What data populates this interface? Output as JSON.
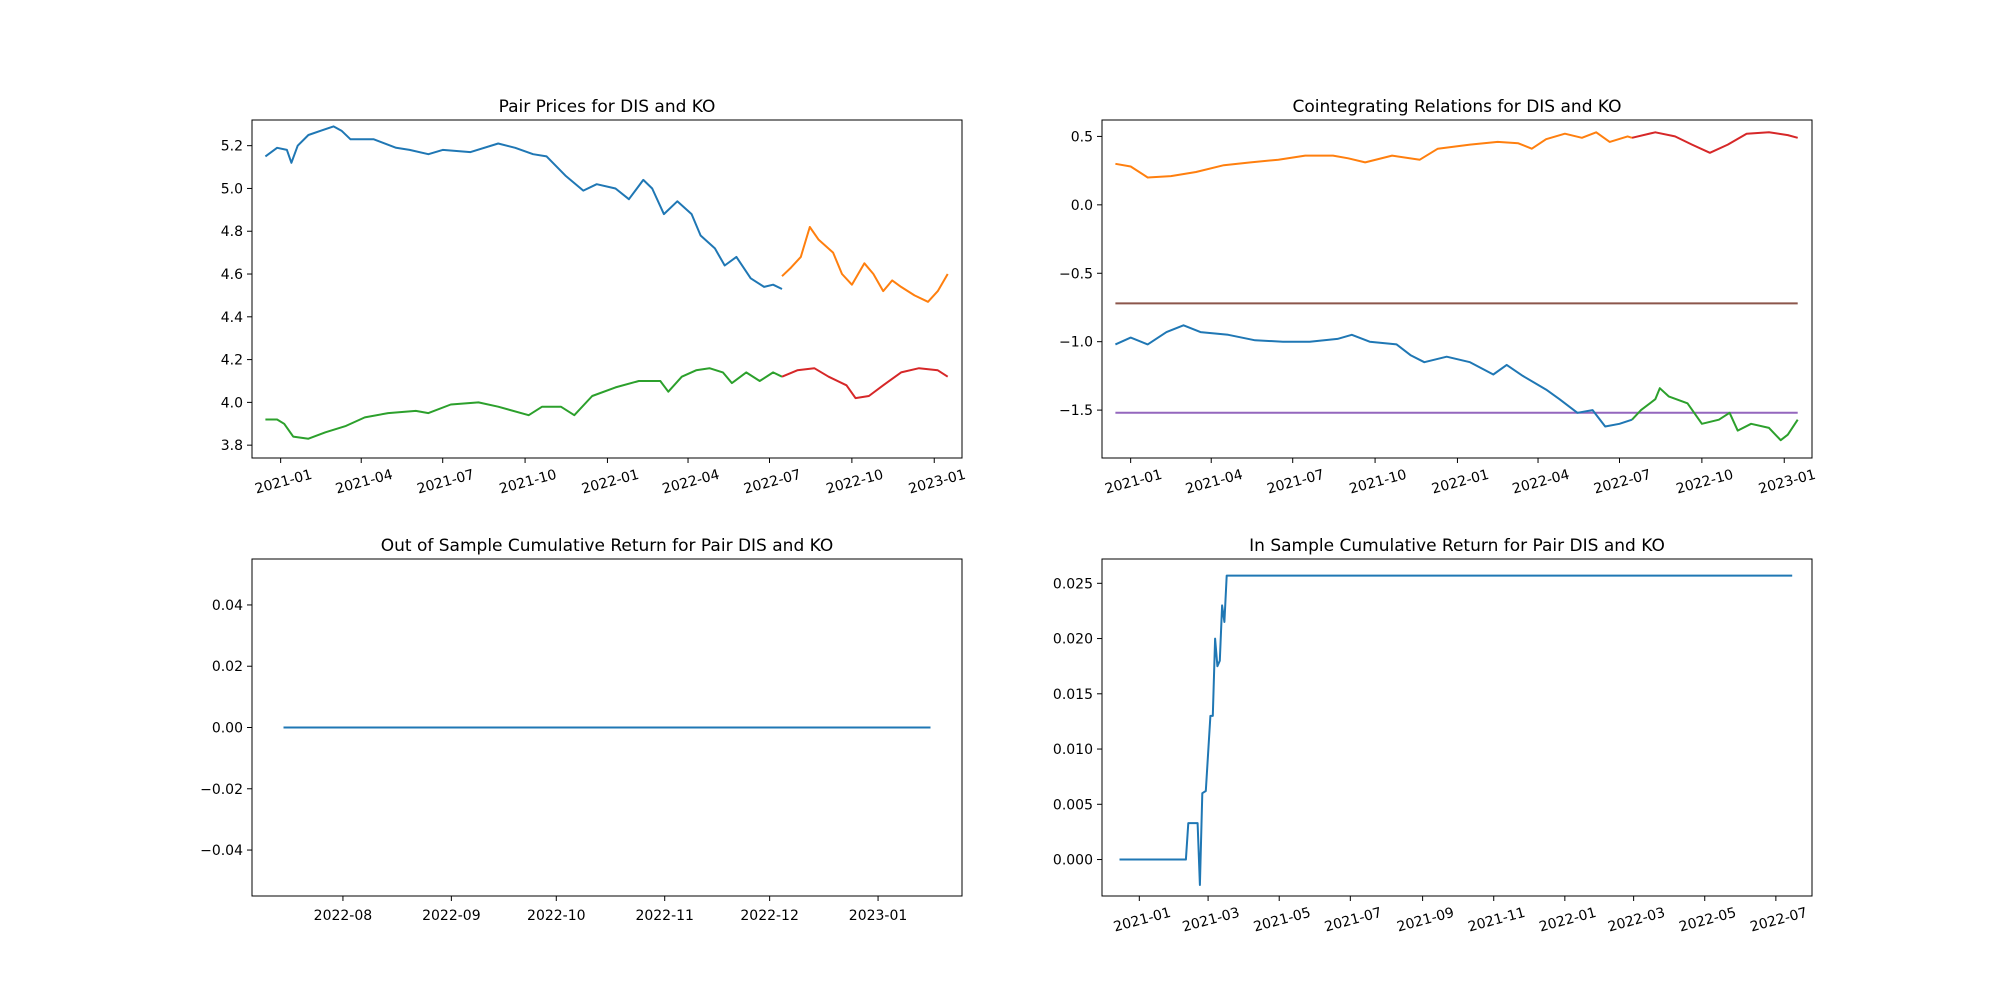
{
  "chart_data": [
    {
      "type": "line",
      "title": "Pair Prices for DIS and KO",
      "ylim": [
        3.74,
        5.32
      ],
      "yticks": [
        "3.8",
        "4.0",
        "4.2",
        "4.4",
        "4.6",
        "4.8",
        "5.0",
        "5.2"
      ],
      "xticks": [
        "2021-01",
        "2021-04",
        "2021-07",
        "2021-10",
        "2022-01",
        "2022-04",
        "2022-07",
        "2022-10",
        "2023-01"
      ],
      "series": [
        {
          "color": "#1f77b4",
          "points": [
            [
              "2020-12-15",
              5.15
            ],
            [
              "2020-12-28",
              5.19
            ],
            [
              "2021-01-08",
              5.18
            ],
            [
              "2021-01-13",
              5.12
            ],
            [
              "2021-01-20",
              5.2
            ],
            [
              "2021-02-01",
              5.25
            ],
            [
              "2021-02-15",
              5.27
            ],
            [
              "2021-03-01",
              5.29
            ],
            [
              "2021-03-10",
              5.27
            ],
            [
              "2021-03-20",
              5.23
            ],
            [
              "2021-04-15",
              5.23
            ],
            [
              "2021-05-10",
              5.19
            ],
            [
              "2021-05-25",
              5.18
            ],
            [
              "2021-06-15",
              5.16
            ],
            [
              "2021-07-01",
              5.18
            ],
            [
              "2021-08-01",
              5.17
            ],
            [
              "2021-09-01",
              5.21
            ],
            [
              "2021-09-20",
              5.19
            ],
            [
              "2021-10-10",
              5.16
            ],
            [
              "2021-10-25",
              5.15
            ],
            [
              "2021-11-15",
              5.06
            ],
            [
              "2021-12-05",
              4.99
            ],
            [
              "2021-12-20",
              5.02
            ],
            [
              "2022-01-10",
              5.0
            ],
            [
              "2022-01-25",
              4.95
            ],
            [
              "2022-02-10",
              5.04
            ],
            [
              "2022-02-20",
              5.0
            ],
            [
              "2022-03-05",
              4.88
            ],
            [
              "2022-03-20",
              4.94
            ],
            [
              "2022-04-05",
              4.88
            ],
            [
              "2022-04-15",
              4.78
            ],
            [
              "2022-05-01",
              4.72
            ],
            [
              "2022-05-12",
              4.64
            ],
            [
              "2022-05-25",
              4.68
            ],
            [
              "2022-06-10",
              4.58
            ],
            [
              "2022-06-25",
              4.54
            ],
            [
              "2022-07-05",
              4.55
            ],
            [
              "2022-07-15",
              4.53
            ]
          ]
        },
        {
          "color": "#ff7f0e",
          "points": [
            [
              "2022-07-15",
              4.59
            ],
            [
              "2022-07-25",
              4.63
            ],
            [
              "2022-08-05",
              4.68
            ],
            [
              "2022-08-15",
              4.82
            ],
            [
              "2022-08-25",
              4.76
            ],
            [
              "2022-09-10",
              4.7
            ],
            [
              "2022-09-20",
              4.6
            ],
            [
              "2022-10-01",
              4.55
            ],
            [
              "2022-10-15",
              4.65
            ],
            [
              "2022-10-25",
              4.6
            ],
            [
              "2022-11-05",
              4.52
            ],
            [
              "2022-11-15",
              4.57
            ],
            [
              "2022-11-25",
              4.54
            ],
            [
              "2022-12-10",
              4.5
            ],
            [
              "2022-12-25",
              4.47
            ],
            [
              "2023-01-05",
              4.52
            ],
            [
              "2023-01-16",
              4.6
            ]
          ]
        },
        {
          "color": "#2ca02c",
          "points": [
            [
              "2020-12-15",
              3.92
            ],
            [
              "2020-12-28",
              3.92
            ],
            [
              "2021-01-05",
              3.9
            ],
            [
              "2021-01-15",
              3.84
            ],
            [
              "2021-02-01",
              3.83
            ],
            [
              "2021-02-20",
              3.86
            ],
            [
              "2021-03-15",
              3.89
            ],
            [
              "2021-04-05",
              3.93
            ],
            [
              "2021-05-01",
              3.95
            ],
            [
              "2021-06-01",
              3.96
            ],
            [
              "2021-06-15",
              3.95
            ],
            [
              "2021-07-10",
              3.99
            ],
            [
              "2021-08-10",
              4.0
            ],
            [
              "2021-09-01",
              3.98
            ],
            [
              "2021-10-05",
              3.94
            ],
            [
              "2021-10-20",
              3.98
            ],
            [
              "2021-11-10",
              3.98
            ],
            [
              "2021-11-25",
              3.94
            ],
            [
              "2021-12-15",
              4.03
            ],
            [
              "2022-01-10",
              4.07
            ],
            [
              "2022-02-05",
              4.1
            ],
            [
              "2022-03-01",
              4.1
            ],
            [
              "2022-03-10",
              4.05
            ],
            [
              "2022-03-25",
              4.12
            ],
            [
              "2022-04-10",
              4.15
            ],
            [
              "2022-04-25",
              4.16
            ],
            [
              "2022-05-10",
              4.14
            ],
            [
              "2022-05-20",
              4.09
            ],
            [
              "2022-06-05",
              4.14
            ],
            [
              "2022-06-20",
              4.1
            ],
            [
              "2022-07-05",
              4.14
            ],
            [
              "2022-07-15",
              4.12
            ]
          ]
        },
        {
          "color": "#d62728",
          "points": [
            [
              "2022-07-15",
              4.12
            ],
            [
              "2022-08-01",
              4.15
            ],
            [
              "2022-08-20",
              4.16
            ],
            [
              "2022-09-05",
              4.12
            ],
            [
              "2022-09-25",
              4.08
            ],
            [
              "2022-10-05",
              4.02
            ],
            [
              "2022-10-20",
              4.03
            ],
            [
              "2022-11-05",
              4.08
            ],
            [
              "2022-11-25",
              4.14
            ],
            [
              "2022-12-15",
              4.16
            ],
            [
              "2023-01-05",
              4.15
            ],
            [
              "2023-01-16",
              4.12
            ]
          ]
        }
      ]
    },
    {
      "type": "line",
      "title": "Cointegrating Relations for DIS and KO",
      "ylim": [
        -1.85,
        0.62
      ],
      "yticks": [
        "−1.5",
        "−1.0",
        "−0.5",
        "0.0",
        "0.5"
      ],
      "xticks": [
        "2021-01",
        "2021-04",
        "2021-07",
        "2021-10",
        "2022-01",
        "2022-04",
        "2022-07",
        "2022-10",
        "2023-01"
      ],
      "series": [
        {
          "color": "#8c564b",
          "points": [
            [
              "2020-12-15",
              -0.72
            ],
            [
              "2023-01-16",
              -0.72
            ]
          ]
        },
        {
          "color": "#9467bd",
          "points": [
            [
              "2020-12-15",
              -1.52
            ],
            [
              "2023-01-16",
              -1.52
            ]
          ]
        },
        {
          "color": "#ff7f0e",
          "points": [
            [
              "2020-12-15",
              0.3
            ],
            [
              "2021-01-01",
              0.28
            ],
            [
              "2021-01-20",
              0.2
            ],
            [
              "2021-02-15",
              0.21
            ],
            [
              "2021-03-15",
              0.24
            ],
            [
              "2021-04-15",
              0.29
            ],
            [
              "2021-05-15",
              0.31
            ],
            [
              "2021-06-15",
              0.33
            ],
            [
              "2021-07-15",
              0.36
            ],
            [
              "2021-08-15",
              0.36
            ],
            [
              "2021-09-01",
              0.34
            ],
            [
              "2021-09-20",
              0.31
            ],
            [
              "2021-10-20",
              0.36
            ],
            [
              "2021-11-20",
              0.33
            ],
            [
              "2021-12-10",
              0.41
            ],
            [
              "2022-01-15",
              0.44
            ],
            [
              "2022-02-15",
              0.46
            ],
            [
              "2022-03-10",
              0.45
            ],
            [
              "2022-03-25",
              0.41
            ],
            [
              "2022-04-10",
              0.48
            ],
            [
              "2022-05-01",
              0.52
            ],
            [
              "2022-05-20",
              0.49
            ],
            [
              "2022-06-05",
              0.53
            ],
            [
              "2022-06-20",
              0.46
            ],
            [
              "2022-07-10",
              0.5
            ],
            [
              "2022-07-15",
              0.49
            ]
          ]
        },
        {
          "color": "#d62728",
          "points": [
            [
              "2022-07-15",
              0.49
            ],
            [
              "2022-08-10",
              0.53
            ],
            [
              "2022-09-01",
              0.5
            ],
            [
              "2022-09-20",
              0.44
            ],
            [
              "2022-10-10",
              0.38
            ],
            [
              "2022-10-30",
              0.44
            ],
            [
              "2022-11-20",
              0.52
            ],
            [
              "2022-12-15",
              0.53
            ],
            [
              "2023-01-05",
              0.51
            ],
            [
              "2023-01-16",
              0.49
            ]
          ]
        },
        {
          "color": "#1f77b4",
          "points": [
            [
              "2020-12-15",
              -1.02
            ],
            [
              "2021-01-01",
              -0.97
            ],
            [
              "2021-01-20",
              -1.02
            ],
            [
              "2021-02-10",
              -0.93
            ],
            [
              "2021-03-01",
              -0.88
            ],
            [
              "2021-03-20",
              -0.93
            ],
            [
              "2021-04-20",
              -0.95
            ],
            [
              "2021-05-20",
              -0.99
            ],
            [
              "2021-06-20",
              -1.0
            ],
            [
              "2021-07-20",
              -1.0
            ],
            [
              "2021-08-20",
              -0.98
            ],
            [
              "2021-09-05",
              -0.95
            ],
            [
              "2021-09-25",
              -1.0
            ],
            [
              "2021-10-25",
              -1.02
            ],
            [
              "2021-11-10",
              -1.1
            ],
            [
              "2021-11-25",
              -1.15
            ],
            [
              "2021-12-20",
              -1.11
            ],
            [
              "2022-01-15",
              -1.15
            ],
            [
              "2022-02-10",
              -1.24
            ],
            [
              "2022-02-25",
              -1.17
            ],
            [
              "2022-03-15",
              -1.25
            ],
            [
              "2022-04-10",
              -1.35
            ],
            [
              "2022-04-25",
              -1.42
            ],
            [
              "2022-05-15",
              -1.52
            ],
            [
              "2022-06-01",
              -1.5
            ],
            [
              "2022-06-15",
              -1.62
            ],
            [
              "2022-07-01",
              -1.6
            ],
            [
              "2022-07-15",
              -1.57
            ]
          ]
        },
        {
          "color": "#2ca02c",
          "points": [
            [
              "2022-07-15",
              -1.57
            ],
            [
              "2022-07-25",
              -1.5
            ],
            [
              "2022-08-10",
              -1.42
            ],
            [
              "2022-08-15",
              -1.34
            ],
            [
              "2022-08-25",
              -1.4
            ],
            [
              "2022-09-15",
              -1.45
            ],
            [
              "2022-10-01",
              -1.6
            ],
            [
              "2022-10-20",
              -1.57
            ],
            [
              "2022-11-01",
              -1.52
            ],
            [
              "2022-11-10",
              -1.65
            ],
            [
              "2022-11-25",
              -1.6
            ],
            [
              "2022-12-15",
              -1.63
            ],
            [
              "2022-12-28",
              -1.72
            ],
            [
              "2023-01-05",
              -1.68
            ],
            [
              "2023-01-16",
              -1.57
            ]
          ]
        }
      ]
    },
    {
      "type": "line",
      "title": "Out of Sample Cumulative Return for Pair DIS and KO",
      "ylim": [
        -0.055,
        0.055
      ],
      "yticks": [
        "−0.04",
        "−0.02",
        "0.00",
        "0.02",
        "0.04"
      ],
      "xticks": [
        "2022-08",
        "2022-09",
        "2022-10",
        "2022-11",
        "2022-12",
        "2023-01"
      ],
      "series": [
        {
          "color": "#1f77b4",
          "points": [
            [
              "2022-07-15",
              0.0
            ],
            [
              "2023-01-16",
              0.0
            ]
          ]
        }
      ]
    },
    {
      "type": "line",
      "title": "In Sample Cumulative Return for Pair DIS and KO",
      "ylim": [
        -0.0033,
        0.0272
      ],
      "yticks": [
        "0.000",
        "0.005",
        "0.010",
        "0.015",
        "0.020",
        "0.025"
      ],
      "xticks": [
        "2021-01",
        "2021-03",
        "2021-05",
        "2021-07",
        "2021-09",
        "2021-11",
        "2022-01",
        "2022-03",
        "2022-05",
        "2022-07"
      ],
      "series": [
        {
          "color": "#1f77b4",
          "points": [
            [
              "2020-12-15",
              0.0
            ],
            [
              "2021-02-10",
              0.0
            ],
            [
              "2021-02-12",
              0.0033
            ],
            [
              "2021-02-20",
              0.0033
            ],
            [
              "2021-02-22",
              -0.0023
            ],
            [
              "2021-02-24",
              0.006
            ],
            [
              "2021-02-27",
              0.0062
            ],
            [
              "2021-03-03",
              0.013
            ],
            [
              "2021-03-05",
              0.013
            ],
            [
              "2021-03-07",
              0.02
            ],
            [
              "2021-03-09",
              0.0175
            ],
            [
              "2021-03-11",
              0.018
            ],
            [
              "2021-03-13",
              0.023
            ],
            [
              "2021-03-15",
              0.0215
            ],
            [
              "2021-03-17",
              0.0257
            ],
            [
              "2022-07-15",
              0.0257
            ]
          ]
        }
      ]
    }
  ]
}
